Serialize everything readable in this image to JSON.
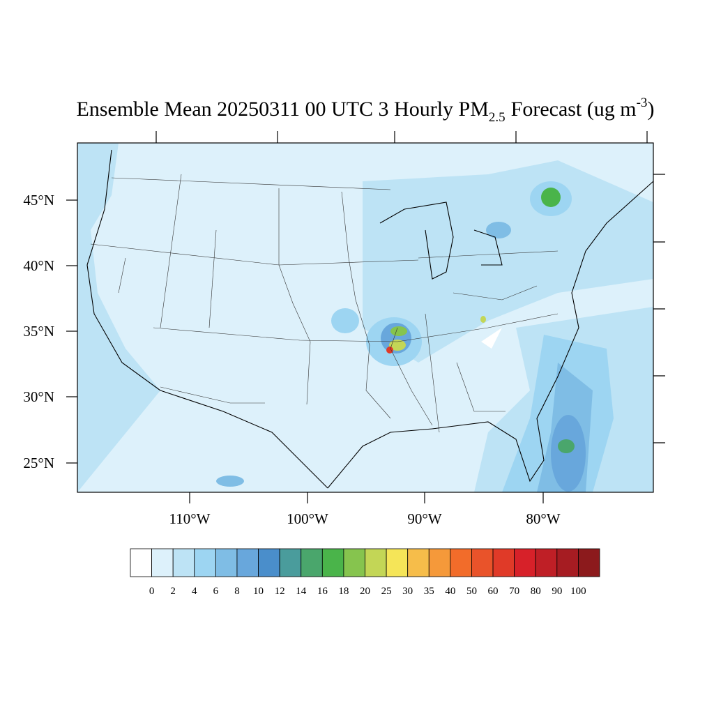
{
  "title": {
    "main": "Ensemble Mean 20250311 00 UTC 3 Hourly PM",
    "sub": "2.5",
    "mid": "Forecast (ug m",
    "sup": "-3",
    "end": ")"
  },
  "lat_labels": [
    "45°N",
    "40°N",
    "35°N",
    "30°N",
    "25°N"
  ],
  "lon_labels": [
    "110°W",
    "100°W",
    "90°W",
    "80°W"
  ],
  "colorbar": {
    "levels": [
      0,
      2,
      4,
      6,
      8,
      10,
      12,
      14,
      16,
      18,
      20,
      25,
      30,
      35,
      40,
      50,
      60,
      70,
      80,
      90,
      100
    ],
    "colors": [
      "#ffffff",
      "#ddf1fb",
      "#bde3f5",
      "#9dd5f2",
      "#7fbde5",
      "#68a7dc",
      "#4a8ecb",
      "#4a9c9c",
      "#4aa66c",
      "#4ab44a",
      "#86c44e",
      "#c3d656",
      "#f5e558",
      "#f6bd4a",
      "#f5993a",
      "#f26c2a",
      "#e9532a",
      "#e03a28",
      "#d72129",
      "#bf1f26",
      "#a61c22",
      "#8c1a1c"
    ]
  }
}
